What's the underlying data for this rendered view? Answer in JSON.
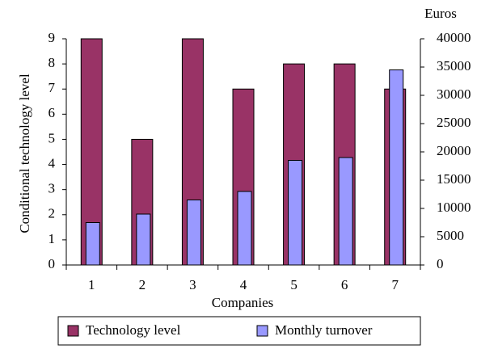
{
  "chart_data": {
    "type": "bar",
    "x_label": "Companies",
    "y_label": "Conditional technology level",
    "y2_label": "Euros",
    "categories": [
      "1",
      "2",
      "3",
      "4",
      "5",
      "6",
      "7"
    ],
    "series": [
      {
        "name": "Technology level",
        "color": "#993366",
        "values": [
          9,
          5,
          9,
          7,
          8,
          8,
          7
        ]
      },
      {
        "name": "Monthly turnover",
        "color": "#9999ff",
        "axis": "y2",
        "values": [
          7500,
          9000,
          11500,
          13000,
          18500,
          19000,
          34500
        ]
      }
    ],
    "ylim": [
      0,
      9
    ],
    "yticks": [
      0,
      1,
      2,
      3,
      4,
      5,
      6,
      7,
      8,
      9
    ],
    "y2lim": [
      0,
      40000
    ],
    "y2ticks": [
      0,
      5000,
      10000,
      15000,
      20000,
      25000,
      30000,
      35000,
      40000
    ],
    "grid": false,
    "legend": "bottom"
  }
}
